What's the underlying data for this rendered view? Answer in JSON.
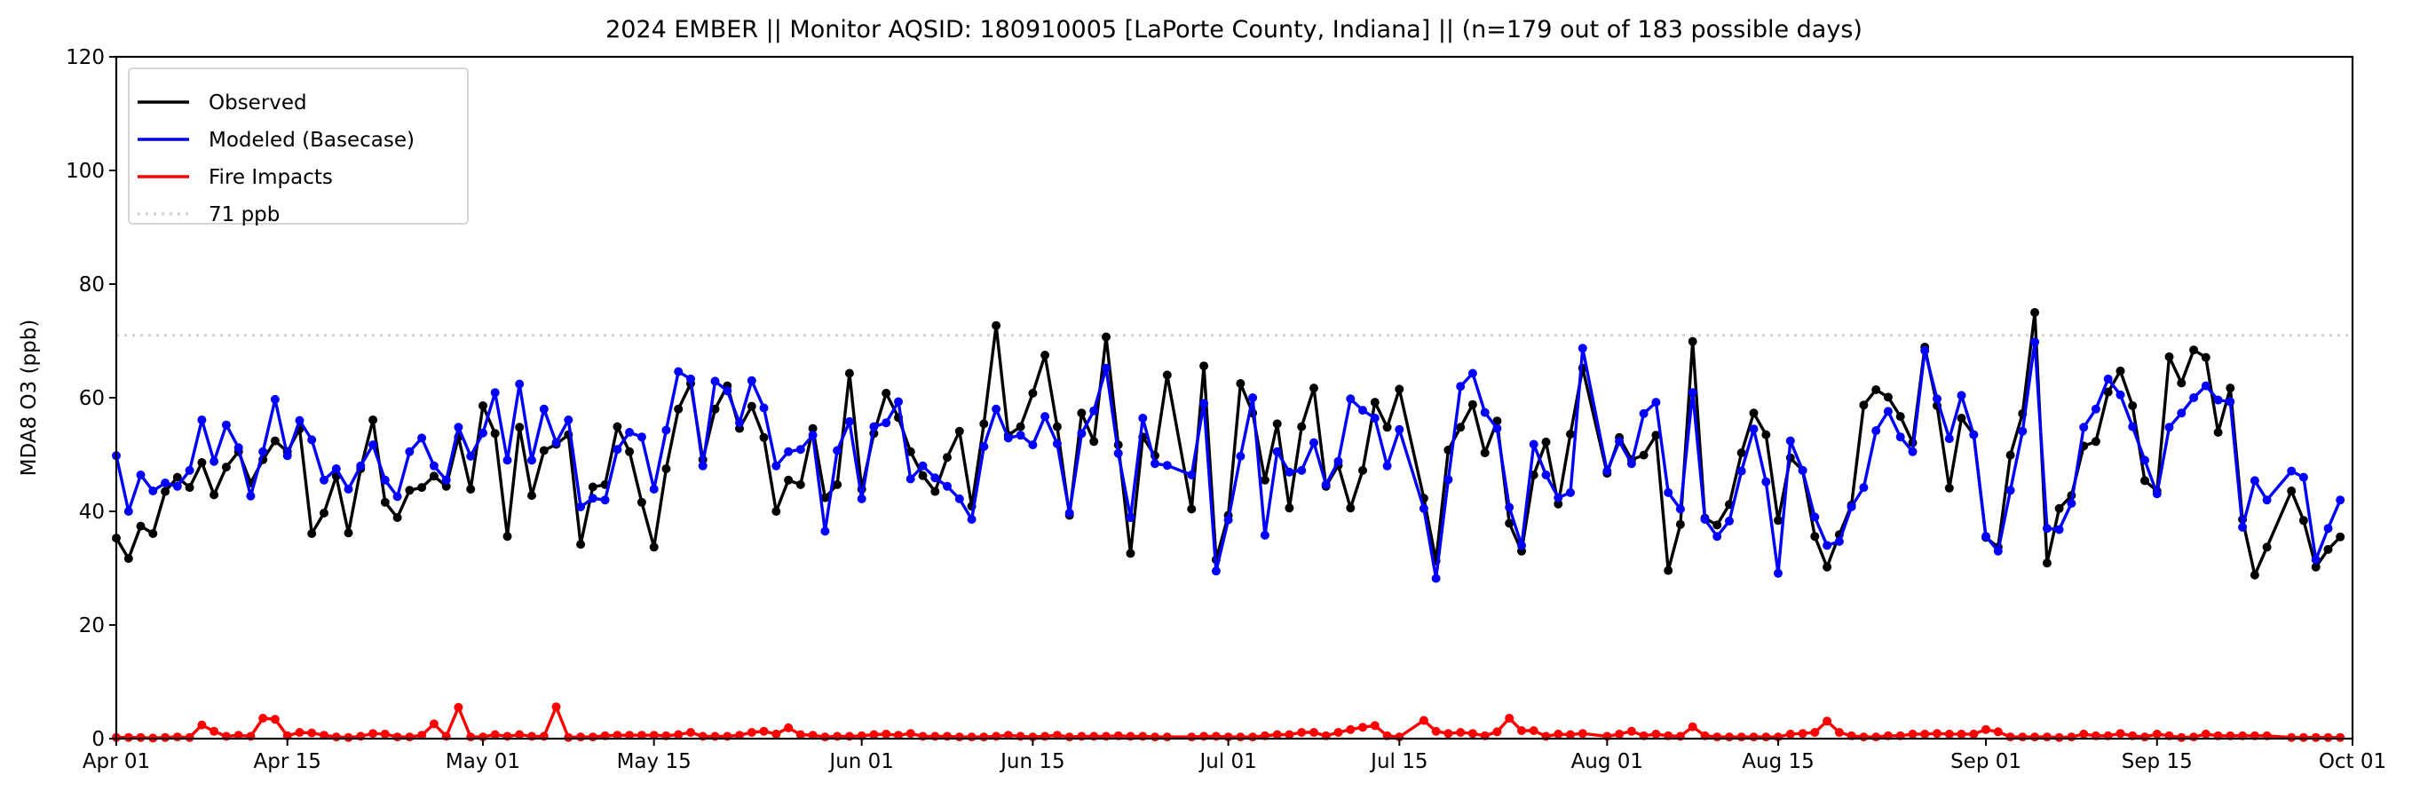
{
  "chart_data": {
    "type": "line",
    "title": "2024 EMBER || Monitor AQSID: 180910005 [LaPorte County, Indiana] || (n=179 out of 183 possible days)",
    "xlabel": "",
    "ylabel": "MDA8 O3 (ppb)",
    "x_start_date": "2024-04-01",
    "x_num_days": 183,
    "xlim": [
      "2024-04-01",
      "2024-10-01"
    ],
    "ylim": [
      0,
      120
    ],
    "xticks": [
      {
        "day": 0,
        "label": "Apr 01"
      },
      {
        "day": 14,
        "label": "Apr 15"
      },
      {
        "day": 30,
        "label": "May 01"
      },
      {
        "day": 44,
        "label": "May 15"
      },
      {
        "day": 61,
        "label": "Jun 01"
      },
      {
        "day": 75,
        "label": "Jun 15"
      },
      {
        "day": 91,
        "label": "Jul 01"
      },
      {
        "day": 105,
        "label": "Jul 15"
      },
      {
        "day": 122,
        "label": "Aug 01"
      },
      {
        "day": 136,
        "label": "Aug 15"
      },
      {
        "day": 153,
        "label": "Sep 01"
      },
      {
        "day": 167,
        "label": "Sep 15"
      },
      {
        "day": 183,
        "label": "Oct 01"
      }
    ],
    "yticks": [
      {
        "value": 0,
        "label": "0"
      },
      {
        "value": 20,
        "label": "20"
      },
      {
        "value": 40,
        "label": "40"
      },
      {
        "value": 60,
        "label": "60"
      },
      {
        "value": 80,
        "label": "80"
      },
      {
        "value": 100,
        "label": "100"
      },
      {
        "value": 120,
        "label": "120"
      }
    ],
    "grid": false,
    "legend_position": "top-left",
    "reference_line": {
      "value": 71,
      "label": "71 ppb",
      "color": "#d3d3d3"
    },
    "series": [
      {
        "name": "Observed",
        "color": "#000000",
        "values": [
          35.3,
          31.7,
          37.4,
          36.1,
          43.5,
          46.0,
          44.2,
          48.6,
          42.9,
          47.8,
          50.5,
          45.0,
          49.1,
          52.4,
          50.5,
          54.5,
          36.1,
          39.7,
          46.2,
          36.2,
          47.5,
          56.1,
          41.6,
          38.9,
          43.7,
          44.2,
          46.2,
          44.4,
          53.1,
          43.9,
          58.6,
          53.7,
          35.6,
          54.8,
          42.8,
          50.7,
          51.8,
          53.5,
          34.2,
          44.3,
          44.7,
          54.9,
          50.5,
          41.6,
          33.7,
          47.5,
          58.0,
          62.5,
          49.1,
          58.0,
          62.1,
          54.6,
          58.5,
          53.0,
          40.0,
          45.5,
          44.7,
          54.6,
          42.4,
          44.7,
          64.3,
          43.9,
          53.7,
          60.8,
          56.5,
          50.5,
          46.3,
          43.5,
          49.5,
          54.1,
          40.9,
          55.4,
          72.7,
          53.4,
          54.9,
          60.8,
          67.5,
          54.9,
          39.3,
          57.3,
          52.3,
          70.7,
          51.7,
          32.6,
          53.1,
          49.8,
          64.0,
          null,
          40.4,
          65.6,
          31.5,
          39.3,
          62.5,
          57.3,
          45.5,
          55.4,
          40.6,
          54.9,
          61.7,
          44.4,
          48.1,
          40.6,
          47.2,
          59.2,
          54.8,
          61.5,
          null,
          42.3,
          31.3,
          50.8,
          54.8,
          58.8,
          50.3,
          55.9,
          37.9,
          33.0,
          46.4,
          52.2,
          41.3,
          53.6,
          65.2,
          null,
          46.7,
          53.0,
          49.1,
          49.9,
          53.4,
          29.6,
          37.7,
          69.9,
          38.8,
          37.6,
          41.2,
          50.3,
          57.3,
          53.5,
          38.4,
          49.4,
          47.2,
          35.6,
          30.2,
          35.9,
          41.1,
          58.7,
          61.4,
          60.1,
          56.7,
          52.1,
          68.9,
          58.6,
          44.1,
          56.4,
          53.5,
          35.4,
          33.7,
          49.9,
          57.2,
          75.0,
          30.9,
          40.5,
          42.8,
          51.5,
          52.3,
          61.0,
          64.7,
          58.6,
          45.4,
          43.6,
          67.2,
          62.6,
          68.4,
          67.1,
          53.9,
          61.7,
          38.6,
          28.8,
          33.7,
          null,
          43.6,
          38.4,
          30.2,
          33.3,
          35.5
        ]
      },
      {
        "name": "Modeled (Basecase)",
        "color": "#0000ff",
        "values": [
          49.8,
          40.0,
          46.4,
          43.6,
          45.0,
          44.4,
          47.2,
          56.1,
          48.8,
          55.2,
          51.2,
          42.7,
          50.5,
          59.7,
          49.8,
          56.0,
          52.6,
          45.5,
          47.5,
          43.9,
          48.0,
          51.7,
          45.5,
          42.6,
          50.5,
          52.9,
          48.0,
          45.5,
          54.8,
          49.7,
          53.8,
          60.9,
          49.0,
          62.4,
          49.0,
          58.0,
          52.1,
          56.1,
          40.8,
          42.3,
          42.0,
          50.9,
          53.9,
          53.1,
          43.9,
          54.3,
          64.6,
          63.3,
          48.0,
          62.9,
          61.2,
          55.6,
          63.0,
          58.2,
          48.0,
          50.5,
          50.9,
          53.4,
          36.5,
          50.7,
          55.8,
          42.2,
          54.9,
          55.6,
          59.3,
          45.7,
          48.0,
          45.9,
          44.4,
          42.2,
          38.6,
          51.4,
          58.0,
          52.9,
          53.4,
          51.7,
          56.7,
          51.9,
          39.7,
          53.7,
          57.7,
          65.2,
          50.2,
          38.9,
          56.4,
          48.4,
          48.1,
          null,
          46.4,
          59.0,
          29.5,
          38.5,
          49.7,
          60.0,
          35.8,
          50.5,
          46.9,
          47.2,
          52.1,
          44.7,
          48.8,
          59.8,
          57.8,
          56.4,
          48.0,
          54.4,
          null,
          40.5,
          28.2,
          45.6,
          62.0,
          64.3,
          57.4,
          54.6,
          40.7,
          34.0,
          51.8,
          46.4,
          42.4,
          43.3,
          68.7,
          null,
          47.1,
          52.3,
          48.4,
          57.2,
          59.2,
          43.3,
          40.4,
          60.9,
          38.6,
          35.6,
          38.3,
          47.1,
          54.5,
          45.2,
          29.1,
          52.4,
          47.2,
          39.0,
          34.0,
          34.7,
          40.8,
          44.2,
          54.2,
          57.6,
          53.1,
          50.5,
          68.3,
          59.8,
          52.8,
          60.4,
          53.5,
          35.6,
          33.0,
          43.7,
          54.1,
          69.8,
          37.0,
          36.8,
          41.4,
          54.8,
          58.0,
          63.3,
          60.5,
          54.9,
          49.0,
          43.1,
          54.8,
          57.3,
          60.0,
          62.1,
          59.6,
          59.3,
          37.2,
          45.4,
          42.0,
          null,
          47.1,
          46.0,
          31.5,
          37.0,
          42.0
        ]
      },
      {
        "name": "Fire Impacts",
        "color": "#ff0000",
        "values": [
          0.2,
          0.2,
          0.2,
          0.1,
          0.2,
          0.3,
          0.2,
          2.4,
          1.3,
          0.4,
          0.6,
          0.4,
          3.6,
          3.4,
          0.5,
          1.1,
          1.0,
          0.6,
          0.3,
          0.2,
          0.4,
          0.9,
          0.8,
          0.3,
          0.3,
          0.6,
          2.6,
          0.4,
          5.5,
          0.3,
          0.3,
          0.7,
          0.4,
          0.7,
          0.4,
          0.4,
          5.6,
          0.2,
          0.3,
          0.3,
          0.5,
          0.6,
          0.6,
          0.6,
          0.6,
          0.5,
          0.7,
          1.1,
          0.4,
          0.4,
          0.4,
          0.6,
          1.1,
          1.3,
          0.8,
          1.9,
          0.7,
          0.6,
          0.3,
          0.4,
          0.4,
          0.5,
          0.7,
          0.8,
          0.6,
          0.9,
          0.4,
          0.4,
          0.4,
          0.3,
          0.3,
          0.3,
          0.4,
          0.6,
          0.4,
          0.3,
          0.4,
          0.6,
          0.3,
          0.4,
          0.4,
          0.4,
          0.5,
          0.4,
          0.4,
          0.3,
          0.3,
          null,
          0.3,
          0.4,
          0.4,
          0.3,
          0.3,
          0.3,
          0.5,
          0.7,
          0.7,
          1.1,
          1.1,
          0.5,
          1.1,
          1.6,
          2.0,
          2.3,
          0.5,
          0.3,
          null,
          3.2,
          1.3,
          0.9,
          1.1,
          0.9,
          0.5,
          1.2,
          3.6,
          1.4,
          1.4,
          0.4,
          0.8,
          0.7,
          0.9,
          null,
          0.4,
          0.8,
          1.3,
          0.5,
          0.8,
          0.5,
          0.4,
          2.1,
          0.5,
          0.3,
          0.3,
          0.3,
          0.3,
          0.3,
          0.3,
          0.8,
          0.9,
          1.1,
          3.1,
          1.1,
          0.5,
          0.3,
          0.3,
          0.5,
          0.5,
          0.8,
          0.8,
          0.9,
          0.8,
          0.8,
          0.8,
          1.6,
          1.2,
          0.3,
          0.3,
          0.3,
          0.3,
          0.2,
          0.3,
          0.8,
          0.5,
          0.5,
          0.9,
          0.5,
          0.3,
          0.8,
          0.5,
          0.2,
          0.3,
          0.8,
          0.5,
          0.5,
          0.5,
          0.5,
          0.5,
          null,
          0.2,
          0.2,
          0.2,
          0.2,
          0.2
        ]
      }
    ]
  }
}
